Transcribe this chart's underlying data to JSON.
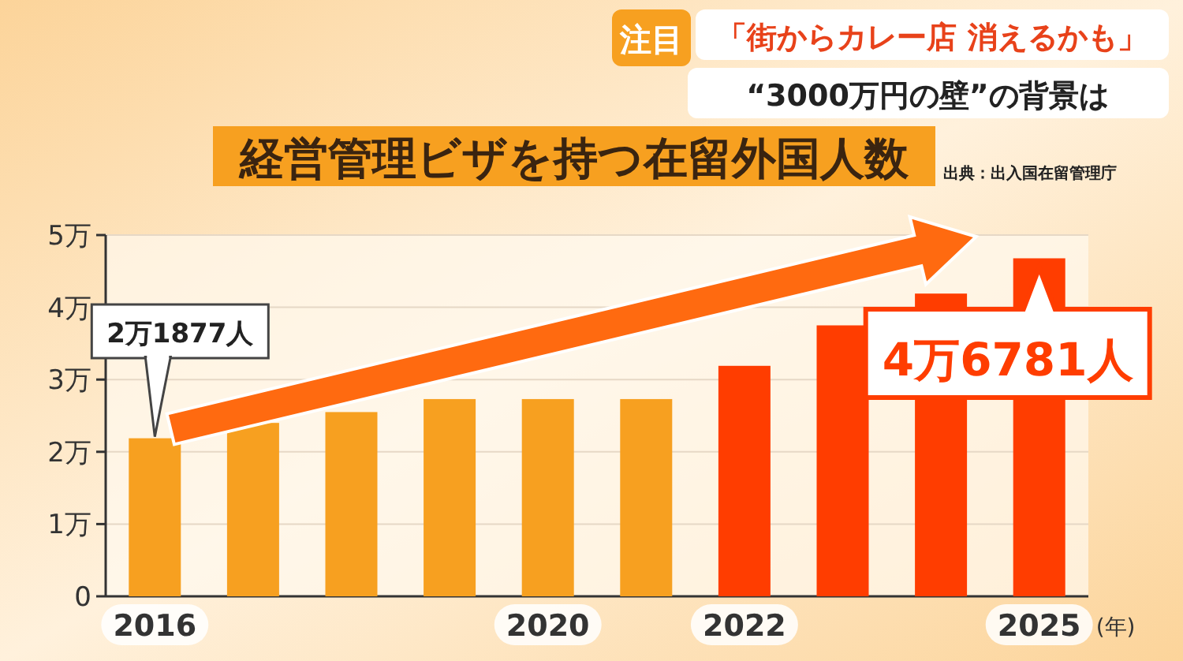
{
  "chart_data": {
    "type": "bar",
    "title": "経営管理ビザを持つ在留外国人数",
    "xlabel": "(年)",
    "categories": [
      "2016",
      null,
      null,
      null,
      "2020",
      null,
      "2022",
      null,
      null,
      "2025"
    ],
    "values": [
      2.1877,
      2.4,
      2.55,
      2.73,
      2.73,
      2.73,
      3.19,
      3.75,
      4.19,
      4.6781
    ],
    "colors": [
      "#f7a020",
      "#f7a020",
      "#f7a020",
      "#f7a020",
      "#f7a020",
      "#f7a020",
      "#ff3d00",
      "#ff3d00",
      "#ff3d00",
      "#ff3d00"
    ],
    "ylim": [
      0,
      5
    ],
    "yticks": [
      0,
      {
        "value": 1,
        "label": "1万"
      },
      {
        "value": 2,
        "label": "2万"
      },
      {
        "value": 3,
        "label": "3万"
      },
      {
        "value": 4,
        "label": "4万"
      },
      {
        "value": 5,
        "label": "5万"
      }
    ],
    "grid": "y",
    "annotations": [
      "注目",
      "「街からカレー店 消えるかも」",
      "“3000万円の壁”の背景は",
      "出典：出入国在留管理庁",
      {
        "text": "2万1877人",
        "x": "2016",
        "y": 2.1877
      },
      {
        "text": "4万6781人",
        "x": "2025",
        "y": 4.6781
      }
    ]
  }
}
